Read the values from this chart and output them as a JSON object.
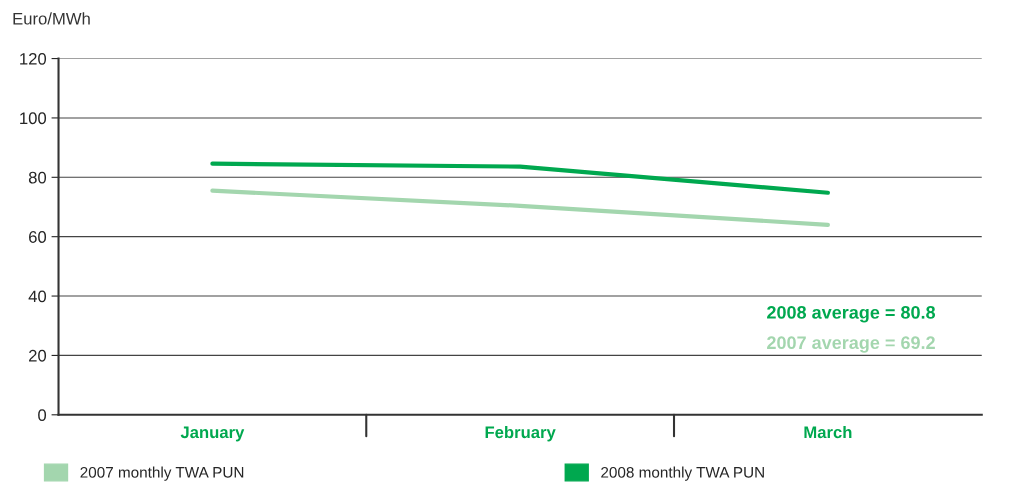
{
  "chart_data": {
    "type": "line",
    "ylabel": "Euro/MWh",
    "categories": [
      "January",
      "February",
      "March"
    ],
    "series": [
      {
        "name": "2007 monthly TWA PUN",
        "color": "#a3d6ae",
        "values": [
          75.5,
          70.4,
          64.0
        ]
      },
      {
        "name": "2008 monthly TWA PUN",
        "color": "#00a84f",
        "values": [
          84.6,
          83.6,
          74.8
        ]
      }
    ],
    "ylim": [
      0,
      120
    ],
    "yticks": [
      0,
      20,
      40,
      60,
      80,
      100,
      120
    ],
    "grid": "y",
    "legend": "bottom",
    "marker": "none",
    "line_style": "solid",
    "annotations": [
      "2008 average = 80.8",
      "2007 average = 69.2"
    ]
  }
}
